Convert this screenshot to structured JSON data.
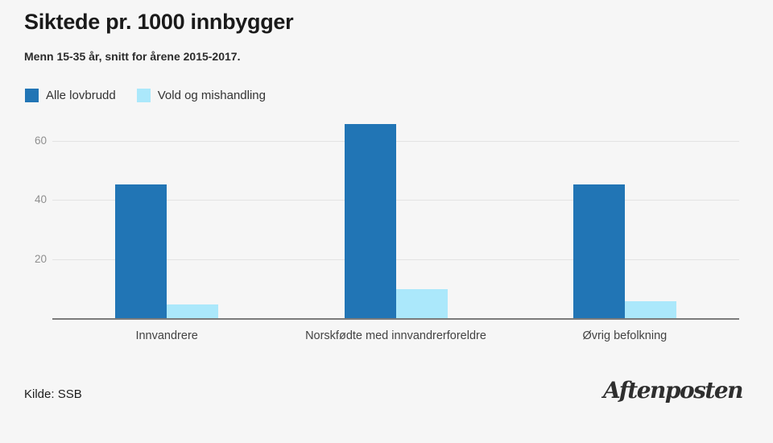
{
  "header": {
    "title": "Siktede pr. 1000 innbygger",
    "subtitle": "Menn 15-35 år, snitt for årene 2015-2017."
  },
  "legend": [
    {
      "label": "Alle lovbrudd",
      "color": "#2175b5"
    },
    {
      "label": "Vold og mishandling",
      "color": "#abe8fb"
    }
  ],
  "chart_data": {
    "type": "bar",
    "title": "Siktede pr. 1000 innbygger",
    "subtitle": "Menn 15-35 år, snitt for årene 2015-2017.",
    "categories": [
      "Innvandrere",
      "Norskfødte med innvandrerforeldre",
      "Øvrig befolkning"
    ],
    "series": [
      {
        "name": "Alle lovbrudd",
        "color": "#2175b5",
        "values": [
          45.5,
          66,
          45.5
        ]
      },
      {
        "name": "Vold og mishandling",
        "color": "#abe8fb",
        "values": [
          5,
          10,
          6
        ]
      }
    ],
    "xlabel": "",
    "ylabel": "",
    "ylim": [
      0,
      67
    ],
    "yticks": [
      20,
      40,
      60
    ],
    "grid": true,
    "legend_position": "top-left",
    "background_color": "#f6f6f6"
  },
  "footer": {
    "source": "Kilde: SSB",
    "brand": "Aftenposten"
  }
}
